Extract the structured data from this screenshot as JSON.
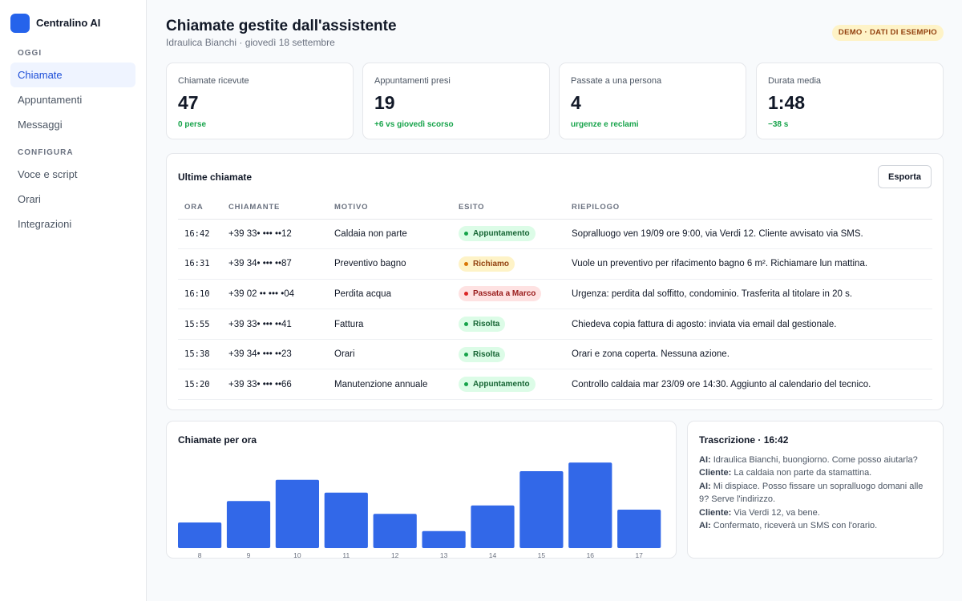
{
  "app": {
    "name": "Centralino AI"
  },
  "sidebar": {
    "sections": [
      {
        "label": "OGGI",
        "items": [
          {
            "label": "Chiamate",
            "active": true
          },
          {
            "label": "Appuntamenti"
          },
          {
            "label": "Messaggi"
          }
        ]
      },
      {
        "label": "CONFIGURA",
        "items": [
          {
            "label": "Voce e script"
          },
          {
            "label": "Orari"
          },
          {
            "label": "Integrazioni"
          }
        ]
      }
    ]
  },
  "header": {
    "title": "Chiamate gestite dall'assistente",
    "subtitle": "Idraulica Bianchi · giovedì 18 settembre",
    "badge": "DEMO · DATI DI ESEMPIO"
  },
  "kpis": [
    {
      "label": "Chiamate ricevute",
      "value": "47",
      "delta": "0 perse"
    },
    {
      "label": "Appuntamenti presi",
      "value": "19",
      "delta": "+6 vs giovedì scorso"
    },
    {
      "label": "Passate a una persona",
      "value": "4",
      "delta": "urgenze e reclami"
    },
    {
      "label": "Durata media",
      "value": "1:48",
      "delta": "−38 s"
    }
  ],
  "calls": {
    "title": "Ultime chiamate",
    "export_label": "Esporta",
    "columns": [
      "ORA",
      "CHIAMANTE",
      "MOTIVO",
      "ESITO",
      "RIEPILOGO"
    ],
    "rows": [
      {
        "time": "16:42",
        "caller": "+39 33• ••• ••12",
        "reason": "Caldaia non parte",
        "outcome": "Appuntamento",
        "status": "success",
        "summary": "Sopralluogo ven 19/09 ore 9:00, via Verdi 12. Cliente avvisato via SMS."
      },
      {
        "time": "16:31",
        "caller": "+39 34• ••• ••87",
        "reason": "Preventivo bagno",
        "outcome": "Richiamo",
        "status": "warning",
        "summary": "Vuole un preventivo per rifacimento bagno 6 m². Richiamare lun mattina."
      },
      {
        "time": "16:10",
        "caller": "+39 02 •• ••• •04",
        "reason": "Perdita acqua",
        "outcome": "Passata a Marco",
        "status": "danger",
        "summary": "Urgenza: perdita dal soffitto, condominio. Trasferita al titolare in 20 s."
      },
      {
        "time": "15:55",
        "caller": "+39 33• ••• ••41",
        "reason": "Fattura",
        "outcome": "Risolta",
        "status": "success",
        "summary": "Chiedeva copia fattura di agosto: inviata via email dal gestionale."
      },
      {
        "time": "15:38",
        "caller": "+39 34• ••• ••23",
        "reason": "Orari",
        "outcome": "Risolta",
        "status": "success",
        "summary": "Orari e zona coperta. Nessuna azione."
      },
      {
        "time": "15:20",
        "caller": "+39 33• ••• ••66",
        "reason": "Manutenzione annuale",
        "outcome": "Appuntamento",
        "status": "success",
        "summary": "Controllo caldaia mar 23/09 ore 14:30. Aggiunto al calendario del tecnico."
      }
    ]
  },
  "status_colors": {
    "success": {
      "bg": "#dcfce7",
      "fg": "#166534",
      "dot": "#16a34a"
    },
    "warning": {
      "bg": "#fef3c7",
      "fg": "#92400e",
      "dot": "#d97706"
    },
    "danger": {
      "bg": "#fee2e2",
      "fg": "#991b1b",
      "dot": "#dc2626"
    }
  },
  "chart_data": {
    "type": "bar",
    "title": "Chiamate per ora",
    "categories": [
      "8",
      "9",
      "10",
      "11",
      "12",
      "13",
      "14",
      "15",
      "16",
      "17"
    ],
    "values": [
      3,
      5.5,
      8,
      6.5,
      4,
      2,
      5,
      9,
      10,
      4.5
    ],
    "ylim": [
      0,
      10.5
    ],
    "grid": false,
    "color": "#3268e8"
  },
  "transcript": {
    "title": "Trascrizione · 16:42",
    "lines": [
      {
        "speaker": "AI:",
        "text": " Idraulica Bianchi, buongiorno. Come posso aiutarla?"
      },
      {
        "speaker": "Cliente:",
        "text": " La caldaia non parte da stamattina."
      },
      {
        "speaker": "AI:",
        "text": " Mi dispiace. Posso fissare un sopralluogo domani alle 9? Serve l'indirizzo."
      },
      {
        "speaker": "Cliente:",
        "text": " Via Verdi 12, va bene."
      },
      {
        "speaker": "AI:",
        "text": " Confermato, riceverà un SMS con l'orario."
      }
    ]
  }
}
